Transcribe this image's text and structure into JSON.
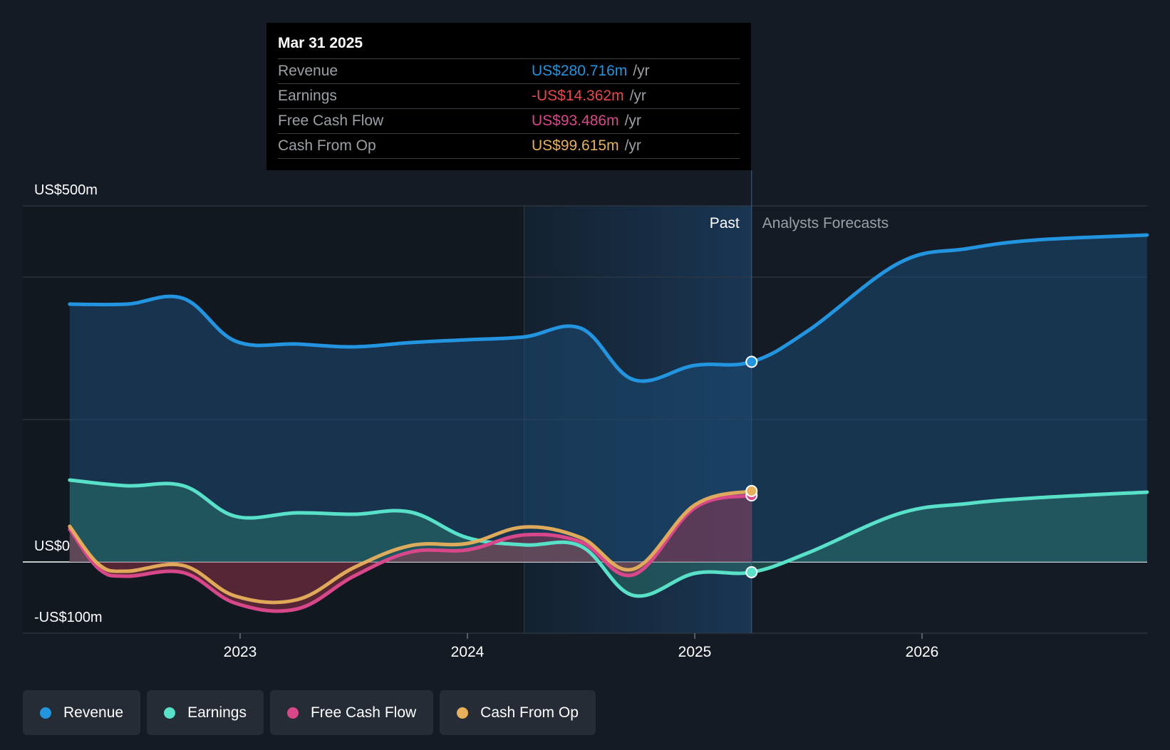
{
  "chart_data": {
    "type": "area",
    "y_axis": {
      "min": -100,
      "max": 500,
      "labels": [
        "US$500m",
        "US$0",
        "-US$100m"
      ]
    },
    "x_axis": {
      "ticks": [
        "2023",
        "2024",
        "2025",
        "2026"
      ]
    },
    "divider": {
      "past_label": "Past",
      "forecast_label": "Analysts Forecasts",
      "date": "Mar 31 2025"
    },
    "series": [
      {
        "name": "Revenue",
        "color": "#2394df",
        "points": [
          [
            2022.25,
            362
          ],
          [
            2022.5,
            362
          ],
          [
            2022.75,
            370
          ],
          [
            2022.98,
            310
          ],
          [
            2023.25,
            306
          ],
          [
            2023.5,
            302
          ],
          [
            2023.75,
            308
          ],
          [
            2024.0,
            312
          ],
          [
            2024.25,
            316
          ],
          [
            2024.5,
            328
          ],
          [
            2024.73,
            256
          ],
          [
            2025.0,
            276
          ],
          [
            2025.25,
            281
          ],
          [
            2025.5,
            325
          ],
          [
            2025.9,
            420
          ],
          [
            2026.2,
            440
          ],
          [
            2026.5,
            452
          ],
          [
            2026.99,
            459
          ]
        ]
      },
      {
        "name": "Earnings",
        "color": "#58e1c8",
        "points": [
          [
            2022.25,
            115
          ],
          [
            2022.5,
            107
          ],
          [
            2022.75,
            107
          ],
          [
            2022.98,
            64
          ],
          [
            2023.25,
            69
          ],
          [
            2023.5,
            67
          ],
          [
            2023.75,
            70
          ],
          [
            2024.0,
            34
          ],
          [
            2024.25,
            24
          ],
          [
            2024.5,
            22
          ],
          [
            2024.73,
            -47
          ],
          [
            2025.0,
            -16
          ],
          [
            2025.25,
            -14.362
          ],
          [
            2025.5,
            13
          ],
          [
            2025.9,
            68
          ],
          [
            2026.2,
            82
          ],
          [
            2026.5,
            90
          ],
          [
            2026.99,
            98
          ]
        ]
      },
      {
        "name": "Free Cash Flow",
        "color": "#d9478b",
        "points": [
          [
            2022.25,
            46
          ],
          [
            2022.38,
            -10
          ],
          [
            2022.5,
            -20
          ],
          [
            2022.75,
            -15
          ],
          [
            2022.98,
            -58
          ],
          [
            2023.25,
            -66
          ],
          [
            2023.5,
            -20
          ],
          [
            2023.75,
            14
          ],
          [
            2024.0,
            17
          ],
          [
            2024.25,
            38
          ],
          [
            2024.5,
            28
          ],
          [
            2024.73,
            -18
          ],
          [
            2025.0,
            76
          ],
          [
            2025.25,
            93.486
          ]
        ]
      },
      {
        "name": "Cash From Op",
        "color": "#e8b05c",
        "points": [
          [
            2022.25,
            50
          ],
          [
            2022.38,
            -4
          ],
          [
            2022.5,
            -13
          ],
          [
            2022.75,
            -5
          ],
          [
            2022.98,
            -48
          ],
          [
            2023.25,
            -53
          ],
          [
            2023.5,
            -8
          ],
          [
            2023.75,
            23
          ],
          [
            2024.0,
            26
          ],
          [
            2024.25,
            49
          ],
          [
            2024.5,
            34
          ],
          [
            2024.73,
            -10
          ],
          [
            2025.0,
            80
          ],
          [
            2025.25,
            99.615
          ]
        ]
      }
    ],
    "tooltip": {
      "date": "Mar 31 2025",
      "rows": [
        {
          "label": "Revenue",
          "value": "US$280.716m",
          "unit": "/yr",
          "color": "#2394df"
        },
        {
          "label": "Earnings",
          "value": "-US$14.362m",
          "unit": "/yr",
          "color": "#e8484e"
        },
        {
          "label": "Free Cash Flow",
          "value": "US$93.486m",
          "unit": "/yr",
          "color": "#d9478b"
        },
        {
          "label": "Cash From Op",
          "value": "US$99.615m",
          "unit": "/yr",
          "color": "#e8b05c"
        }
      ]
    },
    "legend": [
      {
        "label": "Revenue",
        "color": "#2394df"
      },
      {
        "label": "Earnings",
        "color": "#58e1c8"
      },
      {
        "label": "Free Cash Flow",
        "color": "#d9478b"
      },
      {
        "label": "Cash From Op",
        "color": "#e8b05c"
      }
    ]
  }
}
